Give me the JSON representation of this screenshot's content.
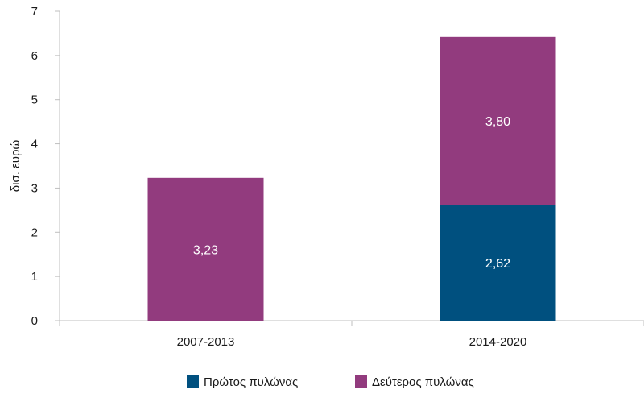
{
  "chart_data": {
    "type": "bar",
    "stacked": true,
    "categories": [
      "2007-2013",
      "2014-2020"
    ],
    "series": [
      {
        "name": "Πρώτος πυλώνας",
        "values": [
          null,
          2.62
        ],
        "labels": [
          "",
          "2,62"
        ],
        "color": "#00507f"
      },
      {
        "name": "Δεύτερος πυλώνας",
        "values": [
          3.23,
          3.8
        ],
        "labels": [
          "3,23",
          "3,80"
        ],
        "color": "#923b7e"
      }
    ],
    "ylabel": "δισ. ευρώ",
    "xlabel": "",
    "ylim": [
      0,
      7
    ],
    "yticks": [
      "0",
      "1",
      "2",
      "3",
      "4",
      "5",
      "6",
      "7"
    ],
    "grid": false,
    "legend": "bottom"
  }
}
